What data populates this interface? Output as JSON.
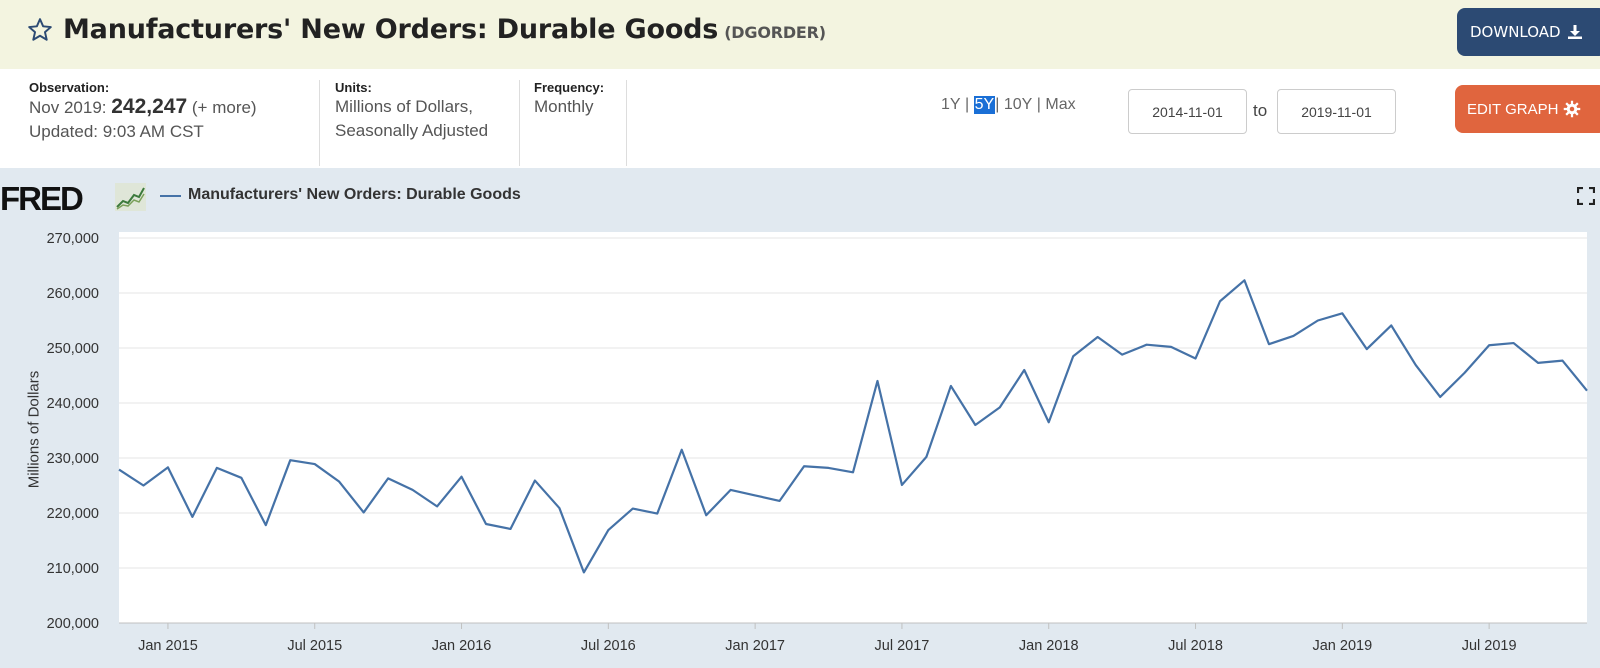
{
  "header": {
    "title": "Manufacturers' New Orders: Durable Goods",
    "series_id": "(DGORDER)",
    "download_label": "DOWNLOAD"
  },
  "meta": {
    "observation_label": "Observation:",
    "observation_period": "Nov 2019:",
    "observation_value": "242,247",
    "observation_more": "(+ more)",
    "updated": "Updated: 9:03 AM CST",
    "units_label": "Units:",
    "units_line1": "Millions of Dollars,",
    "units_line2": "Seasonally Adjusted",
    "frequency_label": "Frequency:",
    "frequency_value": "Monthly"
  },
  "controls": {
    "range_1y": "1Y",
    "range_5y": "5Y",
    "range_10y": "10Y",
    "range_max": "Max",
    "sep": "|",
    "start_date": "2014-11-01",
    "to": "to",
    "end_date": "2019-11-01",
    "edit_label": "EDIT GRAPH"
  },
  "chart_header": {
    "logo": "FRED",
    "legend_label": "Manufacturers' New Orders: Durable Goods"
  },
  "chart_data": {
    "type": "line",
    "ylabel": "Millions of Dollars",
    "ylim": [
      200000,
      270000
    ],
    "xlim": [
      "2014-11-01",
      "2019-11-01"
    ],
    "x_tick_labels": [
      "Jan 2015",
      "Jul 2015",
      "Jan 2016",
      "Jul 2016",
      "Jan 2017",
      "Jul 2017",
      "Jan 2018",
      "Jul 2018",
      "Jan 2019",
      "Jul 2019"
    ],
    "y_tick_labels": [
      "200,000",
      "210,000",
      "220,000",
      "230,000",
      "240,000",
      "250,000",
      "260,000",
      "270,000"
    ],
    "grid": true,
    "series": [
      {
        "name": "Manufacturers' New Orders: Durable Goods",
        "color": "#4572a7",
        "x": [
          "2014-11",
          "2014-12",
          "2015-01",
          "2015-02",
          "2015-03",
          "2015-04",
          "2015-05",
          "2015-06",
          "2015-07",
          "2015-08",
          "2015-09",
          "2015-10",
          "2015-11",
          "2015-12",
          "2016-01",
          "2016-02",
          "2016-03",
          "2016-04",
          "2016-05",
          "2016-06",
          "2016-07",
          "2016-08",
          "2016-09",
          "2016-10",
          "2016-11",
          "2016-12",
          "2017-01",
          "2017-02",
          "2017-03",
          "2017-04",
          "2017-05",
          "2017-06",
          "2017-07",
          "2017-08",
          "2017-09",
          "2017-10",
          "2017-11",
          "2017-12",
          "2018-01",
          "2018-02",
          "2018-03",
          "2018-04",
          "2018-05",
          "2018-06",
          "2018-07",
          "2018-08",
          "2018-09",
          "2018-10",
          "2018-11",
          "2018-12",
          "2019-01",
          "2019-02",
          "2019-03",
          "2019-04",
          "2019-05",
          "2019-06",
          "2019-07",
          "2019-08",
          "2019-09",
          "2019-10",
          "2019-11"
        ],
        "values": [
          227900,
          225000,
          228300,
          219300,
          228200,
          226400,
          217800,
          229600,
          228900,
          225700,
          220100,
          226300,
          224200,
          221200,
          226600,
          218000,
          217100,
          225900,
          220900,
          209200,
          216900,
          220800,
          219900,
          231500,
          219600,
          224200,
          223200,
          222200,
          228500,
          228200,
          227400,
          244000,
          225100,
          230200,
          243100,
          236000,
          239200,
          246000,
          236500,
          248500,
          252000,
          248800,
          250600,
          250200,
          248100,
          258500,
          262300,
          250700,
          252200,
          255000,
          256300,
          249800,
          254100,
          246900,
          241100,
          245500,
          250500,
          250900,
          247300,
          247700,
          242247
        ]
      }
    ]
  },
  "colors": {
    "title_bar_bg": "#f3f4e0",
    "chart_panel_bg": "#e1e9f0",
    "download_bg": "#2c4a73",
    "edit_bg": "#e0653e",
    "active_range": "#1a6fd6",
    "series": "#4572a7"
  }
}
